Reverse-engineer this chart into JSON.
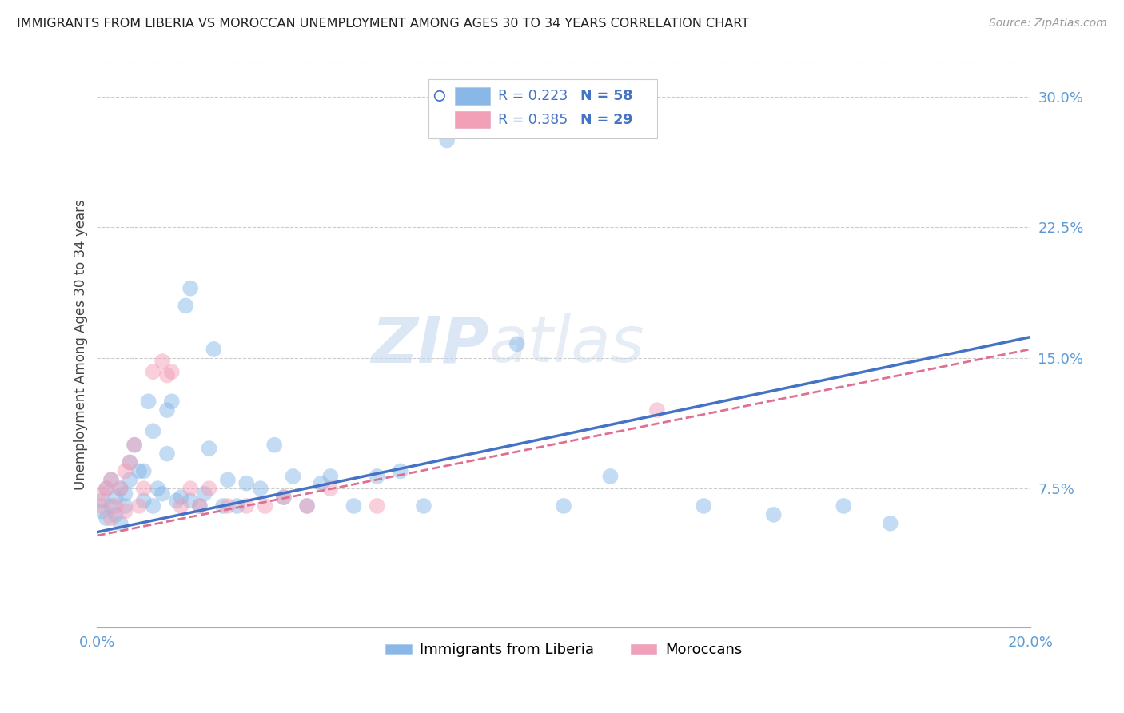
{
  "title": "IMMIGRANTS FROM LIBERIA VS MOROCCAN UNEMPLOYMENT AMONG AGES 30 TO 34 YEARS CORRELATION CHART",
  "source": "Source: ZipAtlas.com",
  "ylabel": "Unemployment Among Ages 30 to 34 years",
  "xlim": [
    0.0,
    0.2
  ],
  "ylim": [
    -0.005,
    0.32
  ],
  "x_ticks": [
    0.0,
    0.05,
    0.1,
    0.15,
    0.2
  ],
  "x_tick_labels": [
    "0.0%",
    "",
    "",
    "",
    "20.0%"
  ],
  "y_ticks_right": [
    0.075,
    0.15,
    0.225,
    0.3
  ],
  "y_tick_labels_right": [
    "7.5%",
    "15.0%",
    "22.5%",
    "30.0%"
  ],
  "color_blue": "#89b8e8",
  "color_pink": "#f2a0b8",
  "color_blue_line": "#4472c4",
  "color_pink_line": "#e07090",
  "watermark_zip": "ZIP",
  "watermark_atlas": "atlas",
  "blue_scatter_x": [
    0.001,
    0.001,
    0.002,
    0.002,
    0.003,
    0.003,
    0.004,
    0.004,
    0.005,
    0.005,
    0.006,
    0.006,
    0.007,
    0.007,
    0.008,
    0.009,
    0.01,
    0.01,
    0.011,
    0.012,
    0.012,
    0.013,
    0.014,
    0.015,
    0.015,
    0.016,
    0.017,
    0.018,
    0.019,
    0.02,
    0.02,
    0.022,
    0.023,
    0.024,
    0.025,
    0.027,
    0.028,
    0.03,
    0.032,
    0.035,
    0.038,
    0.04,
    0.042,
    0.045,
    0.048,
    0.05,
    0.055,
    0.06,
    0.065,
    0.07,
    0.075,
    0.09,
    0.1,
    0.11,
    0.13,
    0.145,
    0.16,
    0.17
  ],
  "blue_scatter_y": [
    0.062,
    0.068,
    0.075,
    0.058,
    0.08,
    0.065,
    0.07,
    0.06,
    0.075,
    0.055,
    0.072,
    0.065,
    0.09,
    0.08,
    0.1,
    0.085,
    0.085,
    0.068,
    0.125,
    0.108,
    0.065,
    0.075,
    0.072,
    0.12,
    0.095,
    0.125,
    0.068,
    0.07,
    0.18,
    0.19,
    0.068,
    0.065,
    0.072,
    0.098,
    0.155,
    0.065,
    0.08,
    0.065,
    0.078,
    0.075,
    0.1,
    0.07,
    0.082,
    0.065,
    0.078,
    0.082,
    0.065,
    0.082,
    0.085,
    0.065,
    0.275,
    0.158,
    0.065,
    0.082,
    0.065,
    0.06,
    0.065,
    0.055
  ],
  "pink_scatter_x": [
    0.001,
    0.001,
    0.002,
    0.003,
    0.003,
    0.004,
    0.005,
    0.006,
    0.006,
    0.007,
    0.008,
    0.009,
    0.01,
    0.012,
    0.014,
    0.015,
    0.016,
    0.018,
    0.02,
    0.022,
    0.024,
    0.028,
    0.032,
    0.036,
    0.04,
    0.045,
    0.05,
    0.06,
    0.12
  ],
  "pink_scatter_y": [
    0.065,
    0.072,
    0.075,
    0.08,
    0.058,
    0.065,
    0.075,
    0.085,
    0.062,
    0.09,
    0.1,
    0.065,
    0.075,
    0.142,
    0.148,
    0.14,
    0.142,
    0.065,
    0.075,
    0.065,
    0.075,
    0.065,
    0.065,
    0.065,
    0.07,
    0.065,
    0.075,
    0.065,
    0.12
  ],
  "blue_trend_x": [
    0.0,
    0.2
  ],
  "blue_trend_y": [
    0.05,
    0.162
  ],
  "pink_trend_x": [
    0.0,
    0.2
  ],
  "pink_trend_y": [
    0.048,
    0.155
  ]
}
